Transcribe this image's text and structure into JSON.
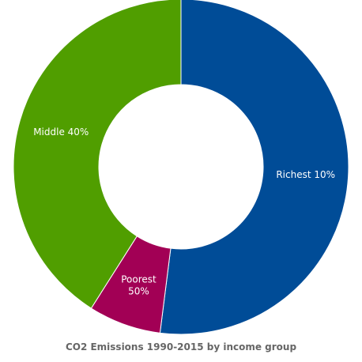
{
  "chart_data": {
    "type": "donut",
    "title": "CO2 Emissions 1990-2015 by income group",
    "slices": [
      {
        "label": "Richest 10%",
        "share": 52,
        "color": "#004c97"
      },
      {
        "label": "Poorest 50%",
        "share": 7,
        "color": "#a20055"
      },
      {
        "label": "Middle 40%",
        "share": 41,
        "color": "#509e00"
      }
    ]
  }
}
